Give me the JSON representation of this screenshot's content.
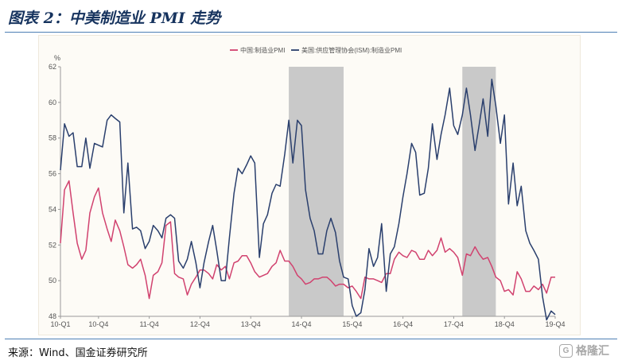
{
  "figure": {
    "title": "图表 2：中美制造业 PMI 走势",
    "source": "来源：Wind、国金证券研究所"
  },
  "watermark": {
    "logo": "G",
    "text": "格隆汇"
  },
  "chart_data": {
    "type": "line",
    "unit_label": "%",
    "ylim": [
      48,
      62
    ],
    "yticks": [
      48,
      50,
      52,
      54,
      56,
      58,
      60,
      62
    ],
    "grid": false,
    "legend_position": "top-center",
    "xlim": [
      2010.0,
      2019.75
    ],
    "xticks": [
      {
        "label": "10-Q1",
        "x": 2010.0
      },
      {
        "label": "10-Q4",
        "x": 2010.75
      },
      {
        "label": "11-Q4",
        "x": 2011.75
      },
      {
        "label": "12-Q4",
        "x": 2012.75
      },
      {
        "label": "13-Q4",
        "x": 2013.75
      },
      {
        "label": "14-Q4",
        "x": 2014.75
      },
      {
        "label": "15-Q4",
        "x": 2015.75
      },
      {
        "label": "16-Q4",
        "x": 2016.75
      },
      {
        "label": "17-Q4",
        "x": 2017.75
      },
      {
        "label": "18-Q4",
        "x": 2018.75
      },
      {
        "label": "19-Q4",
        "x": 2019.75
      }
    ],
    "shaded_ranges": [
      [
        2014.5,
        2015.58
      ],
      [
        2017.92,
        2018.58
      ]
    ],
    "series": [
      {
        "name": "中国:制造业PMI",
        "color": "#d1426f",
        "values": [
          [
            2010.0,
            52.1
          ],
          [
            2010.08,
            55.1
          ],
          [
            2010.17,
            55.6
          ],
          [
            2010.25,
            53.8
          ],
          [
            2010.33,
            52.1
          ],
          [
            2010.42,
            51.2
          ],
          [
            2010.5,
            51.7
          ],
          [
            2010.58,
            53.8
          ],
          [
            2010.67,
            54.7
          ],
          [
            2010.75,
            55.2
          ],
          [
            2010.83,
            53.8
          ],
          [
            2010.92,
            52.9
          ],
          [
            2011.0,
            52.2
          ],
          [
            2011.08,
            53.4
          ],
          [
            2011.17,
            52.8
          ],
          [
            2011.25,
            51.9
          ],
          [
            2011.33,
            50.9
          ],
          [
            2011.42,
            50.7
          ],
          [
            2011.5,
            50.9
          ],
          [
            2011.58,
            51.2
          ],
          [
            2011.67,
            50.3
          ],
          [
            2011.75,
            49.0
          ],
          [
            2011.83,
            50.3
          ],
          [
            2011.92,
            50.5
          ],
          [
            2012.0,
            51.0
          ],
          [
            2012.08,
            53.1
          ],
          [
            2012.17,
            53.3
          ],
          [
            2012.25,
            50.4
          ],
          [
            2012.33,
            50.2
          ],
          [
            2012.42,
            50.1
          ],
          [
            2012.5,
            49.2
          ],
          [
            2012.58,
            49.8
          ],
          [
            2012.67,
            50.2
          ],
          [
            2012.75,
            50.6
          ],
          [
            2012.83,
            50.6
          ],
          [
            2012.92,
            50.4
          ],
          [
            2013.0,
            50.1
          ],
          [
            2013.08,
            50.9
          ],
          [
            2013.17,
            50.6
          ],
          [
            2013.25,
            50.8
          ],
          [
            2013.33,
            50.1
          ],
          [
            2013.42,
            51.0
          ],
          [
            2013.5,
            51.1
          ],
          [
            2013.58,
            51.4
          ],
          [
            2013.67,
            51.4
          ],
          [
            2013.75,
            51.0
          ],
          [
            2013.83,
            50.5
          ],
          [
            2013.92,
            50.2
          ],
          [
            2014.0,
            50.3
          ],
          [
            2014.08,
            50.4
          ],
          [
            2014.17,
            50.8
          ],
          [
            2014.25,
            51.0
          ],
          [
            2014.33,
            51.7
          ],
          [
            2014.42,
            51.1
          ],
          [
            2014.5,
            51.1
          ],
          [
            2014.58,
            50.8
          ],
          [
            2014.67,
            50.3
          ],
          [
            2014.75,
            50.1
          ],
          [
            2014.83,
            49.8
          ],
          [
            2014.92,
            49.9
          ],
          [
            2015.0,
            50.1
          ],
          [
            2015.08,
            50.1
          ],
          [
            2015.17,
            50.2
          ],
          [
            2015.25,
            50.2
          ],
          [
            2015.33,
            50.0
          ],
          [
            2015.42,
            49.7
          ],
          [
            2015.5,
            49.8
          ],
          [
            2015.58,
            49.8
          ],
          [
            2015.67,
            49.6
          ],
          [
            2015.75,
            49.7
          ],
          [
            2015.83,
            49.4
          ],
          [
            2015.92,
            49.0
          ],
          [
            2016.0,
            50.2
          ],
          [
            2016.08,
            50.1
          ],
          [
            2016.17,
            50.1
          ],
          [
            2016.25,
            50.0
          ],
          [
            2016.33,
            49.9
          ],
          [
            2016.42,
            50.4
          ],
          [
            2016.5,
            50.4
          ],
          [
            2016.58,
            51.2
          ],
          [
            2016.67,
            51.6
          ],
          [
            2016.75,
            51.4
          ],
          [
            2016.83,
            51.3
          ],
          [
            2016.92,
            51.7
          ],
          [
            2017.0,
            51.6
          ],
          [
            2017.08,
            51.2
          ],
          [
            2017.17,
            51.2
          ],
          [
            2017.25,
            51.7
          ],
          [
            2017.33,
            51.4
          ],
          [
            2017.42,
            51.7
          ],
          [
            2017.5,
            52.4
          ],
          [
            2017.58,
            51.6
          ],
          [
            2017.67,
            51.8
          ],
          [
            2017.75,
            51.6
          ],
          [
            2017.83,
            51.3
          ],
          [
            2017.92,
            50.3
          ],
          [
            2018.0,
            51.5
          ],
          [
            2018.08,
            51.4
          ],
          [
            2018.17,
            51.9
          ],
          [
            2018.25,
            51.5
          ],
          [
            2018.33,
            51.2
          ],
          [
            2018.42,
            51.3
          ],
          [
            2018.5,
            50.8
          ],
          [
            2018.58,
            50.2
          ],
          [
            2018.67,
            50.0
          ],
          [
            2018.75,
            49.4
          ],
          [
            2018.83,
            49.5
          ],
          [
            2018.92,
            49.2
          ],
          [
            2019.0,
            50.5
          ],
          [
            2019.08,
            50.1
          ],
          [
            2019.17,
            49.4
          ],
          [
            2019.25,
            49.4
          ],
          [
            2019.33,
            49.7
          ],
          [
            2019.42,
            49.5
          ],
          [
            2019.5,
            49.8
          ],
          [
            2019.58,
            49.3
          ],
          [
            2019.67,
            50.2
          ],
          [
            2019.75,
            50.2
          ]
        ]
      },
      {
        "name": "美国:供应管理协会(ISM):制造业PMI",
        "color": "#2a3f6d",
        "values": [
          [
            2010.0,
            56.2
          ],
          [
            2010.08,
            58.8
          ],
          [
            2010.17,
            58.1
          ],
          [
            2010.25,
            58.3
          ],
          [
            2010.33,
            56.4
          ],
          [
            2010.42,
            56.4
          ],
          [
            2010.5,
            58.0
          ],
          [
            2010.58,
            56.3
          ],
          [
            2010.67,
            57.7
          ],
          [
            2010.75,
            57.6
          ],
          [
            2010.83,
            57.5
          ],
          [
            2010.92,
            59.0
          ],
          [
            2011.0,
            59.3
          ],
          [
            2011.08,
            59.1
          ],
          [
            2011.17,
            58.9
          ],
          [
            2011.25,
            53.8
          ],
          [
            2011.33,
            56.6
          ],
          [
            2011.42,
            52.9
          ],
          [
            2011.5,
            53.0
          ],
          [
            2011.58,
            52.8
          ],
          [
            2011.67,
            51.8
          ],
          [
            2011.75,
            52.2
          ],
          [
            2011.83,
            53.1
          ],
          [
            2011.92,
            52.8
          ],
          [
            2012.0,
            52.4
          ],
          [
            2012.08,
            53.5
          ],
          [
            2012.17,
            53.7
          ],
          [
            2012.25,
            53.5
          ],
          [
            2012.33,
            51.1
          ],
          [
            2012.42,
            50.7
          ],
          [
            2012.5,
            51.2
          ],
          [
            2012.58,
            52.2
          ],
          [
            2012.67,
            51.0
          ],
          [
            2012.75,
            49.6
          ],
          [
            2012.83,
            51.0
          ],
          [
            2012.92,
            52.2
          ],
          [
            2013.0,
            53.1
          ],
          [
            2013.08,
            51.7
          ],
          [
            2013.17,
            50.0
          ],
          [
            2013.25,
            50.0
          ],
          [
            2013.33,
            52.4
          ],
          [
            2013.42,
            54.9
          ],
          [
            2013.5,
            56.3
          ],
          [
            2013.58,
            56.0
          ],
          [
            2013.67,
            56.5
          ],
          [
            2013.75,
            57.0
          ],
          [
            2013.83,
            56.6
          ],
          [
            2013.92,
            51.3
          ],
          [
            2014.0,
            53.2
          ],
          [
            2014.08,
            53.7
          ],
          [
            2014.17,
            54.9
          ],
          [
            2014.25,
            55.4
          ],
          [
            2014.33,
            55.3
          ],
          [
            2014.42,
            57.1
          ],
          [
            2014.5,
            59.0
          ],
          [
            2014.58,
            56.6
          ],
          [
            2014.67,
            59.0
          ],
          [
            2014.75,
            58.7
          ],
          [
            2014.83,
            55.1
          ],
          [
            2014.92,
            53.5
          ],
          [
            2015.0,
            52.8
          ],
          [
            2015.08,
            51.5
          ],
          [
            2015.17,
            51.5
          ],
          [
            2015.25,
            52.8
          ],
          [
            2015.33,
            53.5
          ],
          [
            2015.42,
            52.7
          ],
          [
            2015.5,
            51.1
          ],
          [
            2015.58,
            50.2
          ],
          [
            2015.67,
            50.1
          ],
          [
            2015.75,
            48.6
          ],
          [
            2015.83,
            48.0
          ],
          [
            2015.92,
            48.2
          ],
          [
            2016.0,
            49.5
          ],
          [
            2016.08,
            51.8
          ],
          [
            2016.17,
            50.8
          ],
          [
            2016.25,
            51.3
          ],
          [
            2016.33,
            53.2
          ],
          [
            2016.42,
            49.4
          ],
          [
            2016.5,
            51.5
          ],
          [
            2016.58,
            51.9
          ],
          [
            2016.67,
            53.2
          ],
          [
            2016.75,
            54.7
          ],
          [
            2016.83,
            56.0
          ],
          [
            2016.92,
            57.7
          ],
          [
            2017.0,
            57.2
          ],
          [
            2017.08,
            54.8
          ],
          [
            2017.17,
            54.9
          ],
          [
            2017.25,
            56.3
          ],
          [
            2017.33,
            58.8
          ],
          [
            2017.42,
            56.8
          ],
          [
            2017.5,
            58.2
          ],
          [
            2017.58,
            59.3
          ],
          [
            2017.67,
            60.8
          ],
          [
            2017.75,
            58.7
          ],
          [
            2017.83,
            58.2
          ],
          [
            2017.92,
            59.3
          ],
          [
            2018.0,
            60.8
          ],
          [
            2018.08,
            59.3
          ],
          [
            2018.17,
            57.3
          ],
          [
            2018.25,
            58.7
          ],
          [
            2018.33,
            60.2
          ],
          [
            2018.42,
            58.1
          ],
          [
            2018.5,
            61.3
          ],
          [
            2018.58,
            59.8
          ],
          [
            2018.67,
            57.7
          ],
          [
            2018.75,
            59.3
          ],
          [
            2018.83,
            54.3
          ],
          [
            2018.92,
            56.6
          ],
          [
            2019.0,
            54.2
          ],
          [
            2019.08,
            55.3
          ],
          [
            2019.17,
            52.8
          ],
          [
            2019.25,
            52.1
          ],
          [
            2019.33,
            51.7
          ],
          [
            2019.42,
            51.2
          ],
          [
            2019.5,
            49.1
          ],
          [
            2019.58,
            47.8
          ],
          [
            2019.67,
            48.3
          ],
          [
            2019.75,
            48.1
          ]
        ]
      }
    ]
  }
}
